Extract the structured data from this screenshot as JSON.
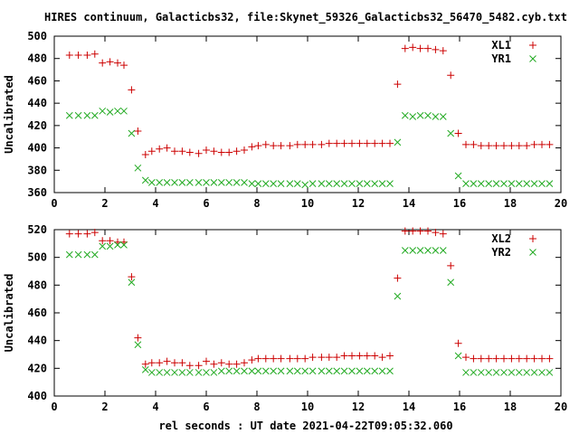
{
  "title": "HIRES continuum, Galacticbs32, file:Skynet_59326_Galacticbs32_56470_5482.cyb.txt",
  "xlabel": "rel seconds : UT date 2021-04-22T09:05:32.060",
  "colors": {
    "red": "#cc0000",
    "green": "#22aa22",
    "axis": "#000000"
  },
  "chart_data": [
    {
      "type": "scatter",
      "ylabel": "Uncalibrated",
      "xlim": [
        0,
        20
      ],
      "ylim": [
        360,
        500
      ],
      "xticks": [
        0,
        2,
        4,
        6,
        8,
        10,
        12,
        14,
        16,
        18,
        20
      ],
      "yticks": [
        360,
        380,
        400,
        420,
        440,
        460,
        480,
        500
      ],
      "grid": false,
      "legend": "top-right",
      "x": [
        0.6,
        0.95,
        1.3,
        1.6,
        1.9,
        2.2,
        2.5,
        2.75,
        3.05,
        3.3,
        3.6,
        3.85,
        4.15,
        4.45,
        4.75,
        5.05,
        5.35,
        5.7,
        6.0,
        6.3,
        6.6,
        6.9,
        7.2,
        7.5,
        7.8,
        8.05,
        8.35,
        8.65,
        8.95,
        9.3,
        9.6,
        9.9,
        10.2,
        10.55,
        10.85,
        11.15,
        11.45,
        11.75,
        12.05,
        12.35,
        12.65,
        12.95,
        13.25,
        13.55,
        13.85,
        14.15,
        14.45,
        14.75,
        15.05,
        15.35,
        15.65,
        15.95,
        16.25,
        16.55,
        16.85,
        17.15,
        17.45,
        17.75,
        18.05,
        18.35,
        18.65,
        18.95,
        19.25,
        19.55
      ],
      "series": [
        {
          "name": "XL1",
          "marker": "+",
          "values": [
            483,
            483,
            483,
            484,
            476,
            477,
            476,
            474,
            452,
            415,
            394,
            397,
            399,
            400,
            397,
            397,
            396,
            395,
            398,
            397,
            396,
            396,
            397,
            398,
            401,
            402,
            403,
            402,
            402,
            402,
            403,
            403,
            403,
            403,
            404,
            404,
            404,
            404,
            404,
            404,
            404,
            404,
            404,
            457,
            489,
            490,
            489,
            489,
            488,
            487,
            465,
            413,
            403,
            403,
            402,
            402,
            402,
            402,
            402,
            402,
            402,
            403,
            403,
            403
          ]
        },
        {
          "name": "YR1",
          "marker": "x",
          "values": [
            429,
            429,
            429,
            429,
            433,
            432,
            433,
            433,
            413,
            382,
            371,
            369,
            369,
            369,
            369,
            369,
            369,
            369,
            369,
            369,
            369,
            369,
            369,
            369,
            368,
            368,
            368,
            368,
            368,
            368,
            368,
            367,
            368,
            368,
            368,
            368,
            368,
            368,
            368,
            368,
            368,
            368,
            368,
            405,
            429,
            428,
            429,
            429,
            428,
            428,
            413,
            375,
            368,
            368,
            368,
            368,
            368,
            368,
            368,
            368,
            368,
            368,
            368,
            368
          ]
        }
      ]
    },
    {
      "type": "scatter",
      "ylabel": "Uncalibrated",
      "xlim": [
        0,
        20
      ],
      "ylim": [
        400,
        520
      ],
      "xticks": [
        0,
        2,
        4,
        6,
        8,
        10,
        12,
        14,
        16,
        18,
        20
      ],
      "yticks": [
        400,
        420,
        440,
        460,
        480,
        500,
        520
      ],
      "grid": false,
      "legend": "top-right",
      "x": [
        0.6,
        0.95,
        1.3,
        1.6,
        1.9,
        2.2,
        2.5,
        2.75,
        3.05,
        3.3,
        3.6,
        3.85,
        4.15,
        4.45,
        4.75,
        5.05,
        5.35,
        5.7,
        6.0,
        6.3,
        6.6,
        6.9,
        7.2,
        7.5,
        7.8,
        8.05,
        8.35,
        8.65,
        8.95,
        9.3,
        9.6,
        9.9,
        10.2,
        10.55,
        10.85,
        11.15,
        11.45,
        11.75,
        12.05,
        12.35,
        12.65,
        12.95,
        13.25,
        13.55,
        13.85,
        14.15,
        14.45,
        14.75,
        15.05,
        15.35,
        15.65,
        15.95,
        16.25,
        16.55,
        16.85,
        17.15,
        17.45,
        17.75,
        18.05,
        18.35,
        18.65,
        18.95,
        19.25,
        19.55
      ],
      "series": [
        {
          "name": "XL2",
          "marker": "+",
          "values": [
            517,
            517,
            517,
            518,
            512,
            512,
            511,
            511,
            486,
            442,
            423,
            424,
            424,
            425,
            424,
            424,
            422,
            422,
            425,
            423,
            424,
            423,
            423,
            424,
            426,
            427,
            427,
            427,
            427,
            427,
            427,
            427,
            428,
            428,
            428,
            428,
            429,
            429,
            429,
            429,
            429,
            428,
            429,
            485,
            519,
            519,
            519,
            519,
            518,
            517,
            494,
            438,
            428,
            427,
            427,
            427,
            427,
            427,
            427,
            427,
            427,
            427,
            427,
            427
          ]
        },
        {
          "name": "YR2",
          "marker": "x",
          "values": [
            502,
            502,
            502,
            502,
            508,
            508,
            509,
            509,
            482,
            437,
            419,
            417,
            417,
            417,
            417,
            417,
            417,
            417,
            417,
            417,
            418,
            418,
            418,
            418,
            418,
            418,
            418,
            418,
            418,
            418,
            418,
            418,
            418,
            418,
            418,
            418,
            418,
            418,
            418,
            418,
            418,
            418,
            418,
            472,
            505,
            505,
            505,
            505,
            505,
            505,
            482,
            429,
            417,
            417,
            417,
            417,
            417,
            417,
            417,
            417,
            417,
            417,
            417,
            417
          ]
        }
      ]
    }
  ]
}
